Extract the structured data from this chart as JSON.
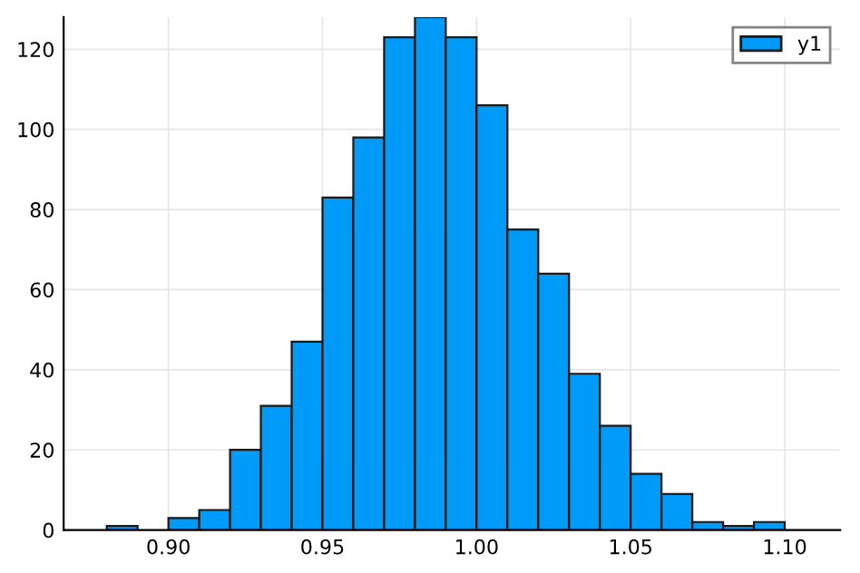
{
  "chart_data": {
    "type": "histogram",
    "bins": [
      0.88,
      0.89,
      0.9,
      0.91,
      0.92,
      0.93,
      0.94,
      0.95,
      0.96,
      0.97,
      0.98,
      0.99,
      1.0,
      1.01,
      1.02,
      1.03,
      1.04,
      1.05,
      1.06,
      1.07,
      1.08,
      1.09,
      1.1
    ],
    "series": [
      {
        "name": "y1",
        "color": "#009af9",
        "values": [
          1,
          0,
          3,
          5,
          20,
          31,
          47,
          83,
          98,
          123,
          128,
          123,
          106,
          75,
          64,
          39,
          26,
          14,
          9,
          2,
          1,
          2
        ]
      }
    ],
    "xlim": [
      0.866,
      1.118
    ],
    "ylim": [
      0,
      128
    ],
    "xticks": [
      {
        "value": 0.9,
        "label": "0.90"
      },
      {
        "value": 0.95,
        "label": "0.95"
      },
      {
        "value": 1.0,
        "label": "1.00"
      },
      {
        "value": 1.05,
        "label": "1.05"
      },
      {
        "value": 1.1,
        "label": "1.10"
      }
    ],
    "yticks": [
      0,
      20,
      40,
      60,
      80,
      100,
      120
    ],
    "grid": true,
    "legend": "top right"
  }
}
